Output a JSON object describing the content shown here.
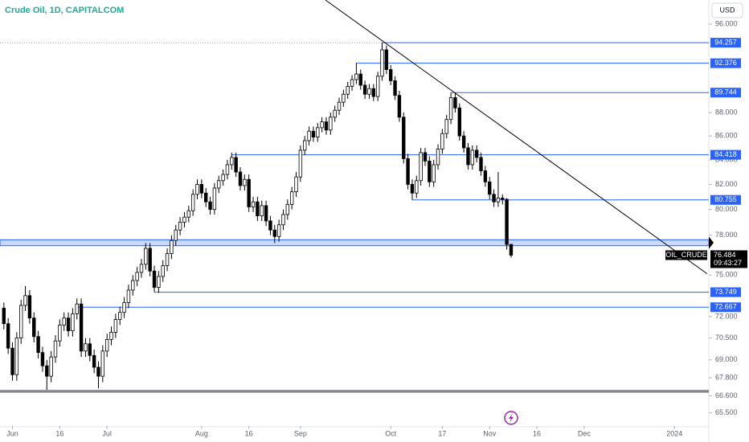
{
  "chart_data": {
    "type": "candlestick",
    "title": "Crude Oil, 1D, CAPITALCOM",
    "currency": "USD",
    "symbol": "OIL_CRUDE",
    "countdown": "09:43:27",
    "log_scale": true,
    "ylim": [
      64.66,
      98.3
    ],
    "xlim": [
      -0.9,
      164
    ],
    "yticks": [
      {
        "value": 96,
        "label": "96.000"
      },
      {
        "value": 88,
        "label": "88.000"
      },
      {
        "value": 86,
        "label": "86.000"
      },
      {
        "value": 84,
        "label": "84.000"
      },
      {
        "value": 82,
        "label": "82.000"
      },
      {
        "value": 80,
        "label": "80.000"
      },
      {
        "value": 78,
        "label": "78.000"
      },
      {
        "value": 75,
        "label": "75.000"
      },
      {
        "value": 72,
        "label": "72.000"
      },
      {
        "value": 70.5,
        "label": "70.500"
      },
      {
        "value": 69,
        "label": "69.000"
      },
      {
        "value": 67.8,
        "label": "67.800"
      },
      {
        "value": 66.6,
        "label": "66.600"
      },
      {
        "value": 65.5,
        "label": "65.500"
      }
    ],
    "xticks": [
      {
        "value": 2,
        "label": "Jun"
      },
      {
        "value": 13,
        "label": "16"
      },
      {
        "value": 24,
        "label": "Jul"
      },
      {
        "value": 46,
        "label": "Aug"
      },
      {
        "value": 57,
        "label": "16"
      },
      {
        "value": 69,
        "label": "Sep"
      },
      {
        "value": 90,
        "label": "Oct"
      },
      {
        "value": 102,
        "label": "17"
      },
      {
        "value": 113,
        "label": "Nov"
      },
      {
        "value": 124,
        "label": "16"
      },
      {
        "value": 135,
        "label": "Dec"
      },
      {
        "value": 156,
        "label": "2024"
      }
    ],
    "up_color": "#ffffff",
    "down_color": "#000000",
    "level_color": "#2962ff",
    "title_color": "#22ab94",
    "open": [
      72.6,
      71.5,
      69.8,
      68.0,
      70.5,
      72.8,
      73.5,
      71.9,
      70.6,
      69.5,
      68.6,
      67.9,
      69.2,
      70.3,
      71.4,
      71.9,
      71.0,
      72.2,
      72.9,
      69.6,
      70.1,
      69.3,
      68.5,
      67.9,
      69.6,
      70.4,
      70.9,
      71.8,
      72.3,
      73.0,
      73.9,
      74.6,
      75.2,
      75.8,
      77.0,
      75.3,
      74.1,
      74.9,
      75.7,
      76.6,
      77.6,
      78.4,
      79.0,
      79.4,
      79.9,
      81.2,
      82.0,
      81.3,
      80.6,
      80.0,
      81.7,
      82.3,
      82.8,
      83.6,
      84.2,
      83.0,
      81.9,
      82.4,
      80.2,
      80.6,
      79.5,
      80.3,
      79.1,
      78.4,
      77.9,
      78.8,
      79.6,
      80.4,
      81.4,
      82.6,
      84.8,
      85.6,
      86.4,
      85.9,
      86.7,
      87.2,
      86.5,
      87.6,
      88.2,
      88.9,
      89.6,
      90.3,
      90.9,
      91.4,
      90.4,
      89.6,
      90.1,
      89.4,
      91.2,
      93.6,
      91.8,
      90.8,
      89.5,
      87.6,
      84.1,
      82.0,
      81.3,
      82.3,
      84.6,
      83.9,
      82.2,
      83.6,
      84.9,
      86.2,
      87.4,
      89.3,
      88.4,
      86.0,
      85.0,
      83.6,
      84.8,
      84.2,
      83.1,
      82.2,
      81.2,
      80.6,
      80.9,
      80.8,
      77.3
    ],
    "high": [
      73.0,
      71.9,
      70.2,
      70.9,
      73.2,
      74.2,
      73.9,
      72.3,
      71.0,
      69.9,
      69.0,
      69.6,
      70.7,
      71.8,
      72.3,
      72.3,
      72.6,
      73.3,
      73.3,
      70.5,
      70.5,
      69.7,
      68.9,
      70.0,
      70.8,
      71.3,
      72.2,
      72.7,
      73.4,
      74.3,
      75.0,
      75.6,
      76.2,
      77.4,
      77.4,
      75.7,
      75.3,
      76.1,
      77.0,
      78.0,
      78.8,
      79.4,
      79.8,
      80.3,
      81.6,
      82.4,
      82.4,
      81.7,
      81.0,
      82.1,
      82.7,
      83.2,
      84.0,
      84.6,
      84.6,
      83.4,
      82.8,
      82.8,
      81.0,
      81.0,
      80.7,
      80.7,
      79.5,
      78.8,
      79.2,
      80.0,
      80.8,
      81.8,
      83.0,
      85.2,
      86.0,
      86.8,
      86.8,
      87.1,
      87.6,
      87.6,
      88.0,
      88.6,
      89.3,
      90.0,
      90.7,
      91.3,
      92.4,
      91.8,
      90.8,
      90.5,
      90.5,
      91.6,
      94.26,
      94.0,
      92.2,
      91.2,
      89.9,
      88.0,
      84.5,
      82.4,
      82.7,
      85.0,
      85.0,
      84.3,
      84.0,
      85.3,
      86.6,
      87.8,
      89.74,
      89.7,
      88.8,
      86.4,
      85.4,
      85.2,
      85.2,
      84.6,
      83.5,
      82.6,
      81.6,
      83.0,
      81.2,
      80.9,
      77.3
    ],
    "low": [
      71.1,
      69.4,
      67.6,
      67.6,
      70.1,
      72.4,
      71.5,
      70.2,
      69.1,
      68.2,
      67.0,
      67.5,
      68.8,
      69.9,
      71.0,
      70.6,
      70.6,
      71.8,
      69.2,
      69.2,
      68.9,
      68.1,
      67.1,
      67.5,
      69.2,
      70.0,
      70.5,
      71.4,
      71.9,
      72.6,
      73.5,
      74.2,
      74.8,
      75.4,
      74.9,
      73.75,
      73.7,
      74.5,
      75.3,
      76.2,
      77.2,
      78.0,
      78.6,
      79.0,
      79.5,
      80.8,
      80.9,
      80.2,
      79.6,
      79.6,
      81.3,
      81.9,
      82.4,
      83.2,
      82.6,
      81.5,
      81.5,
      79.8,
      79.8,
      79.1,
      79.1,
      78.7,
      78.0,
      77.4,
      77.5,
      78.4,
      79.2,
      80.0,
      81.0,
      82.2,
      84.4,
      85.2,
      85.5,
      85.5,
      86.3,
      86.1,
      86.1,
      87.2,
      87.8,
      88.5,
      89.2,
      89.9,
      90.5,
      90.0,
      89.2,
      89.2,
      89.0,
      89.0,
      90.8,
      91.4,
      90.4,
      89.1,
      87.2,
      83.7,
      81.6,
      80.76,
      80.9,
      81.9,
      83.5,
      81.8,
      81.8,
      83.2,
      84.5,
      85.8,
      87.0,
      88.0,
      85.6,
      84.6,
      83.2,
      83.2,
      83.8,
      82.7,
      81.8,
      80.8,
      80.2,
      80.2,
      80.4,
      76.9,
      76.3
    ],
    "close": [
      71.5,
      69.8,
      68.0,
      70.5,
      72.8,
      73.5,
      71.9,
      70.6,
      69.5,
      68.6,
      67.9,
      69.2,
      70.3,
      71.4,
      71.9,
      71.0,
      72.2,
      72.9,
      69.6,
      70.1,
      69.3,
      68.5,
      67.9,
      69.6,
      70.4,
      70.9,
      71.8,
      72.3,
      73.0,
      73.9,
      74.6,
      75.2,
      75.8,
      77.0,
      75.3,
      74.1,
      74.9,
      75.7,
      76.6,
      77.6,
      78.4,
      79.0,
      79.4,
      79.9,
      81.2,
      82.0,
      81.3,
      80.6,
      80.0,
      81.7,
      82.3,
      82.8,
      83.6,
      84.2,
      83.0,
      81.9,
      82.4,
      80.2,
      80.6,
      79.5,
      80.3,
      79.1,
      78.4,
      77.9,
      78.8,
      79.6,
      80.4,
      81.4,
      82.6,
      84.8,
      85.6,
      86.4,
      85.9,
      86.7,
      87.2,
      86.5,
      87.6,
      88.2,
      88.9,
      89.6,
      90.3,
      90.9,
      91.4,
      90.4,
      89.6,
      90.1,
      89.4,
      91.2,
      93.6,
      91.8,
      90.8,
      89.5,
      87.6,
      84.1,
      82.0,
      81.3,
      82.3,
      84.6,
      83.9,
      82.2,
      83.6,
      84.9,
      86.2,
      87.4,
      89.3,
      88.4,
      86.0,
      85.0,
      83.6,
      84.8,
      84.2,
      83.1,
      82.2,
      81.2,
      80.6,
      80.9,
      80.8,
      77.3,
      76.484
    ],
    "levels": [
      {
        "price": 94.257,
        "from": 88
      },
      {
        "price": 92.376,
        "from": 82
      },
      {
        "price": 89.744,
        "from": 104
      },
      {
        "price": 84.418,
        "from": 53
      },
      {
        "price": 80.755,
        "from": 95
      },
      {
        "price": 73.749,
        "from": 35
      },
      {
        "price": 72.667,
        "from": 17
      }
    ],
    "zone": [
      77.2,
      77.65
    ],
    "support": [
      66.85,
      66.95
    ],
    "trendline": [
      [
        74.8,
        98.3
      ],
      [
        163.6,
        75.1
      ]
    ]
  }
}
